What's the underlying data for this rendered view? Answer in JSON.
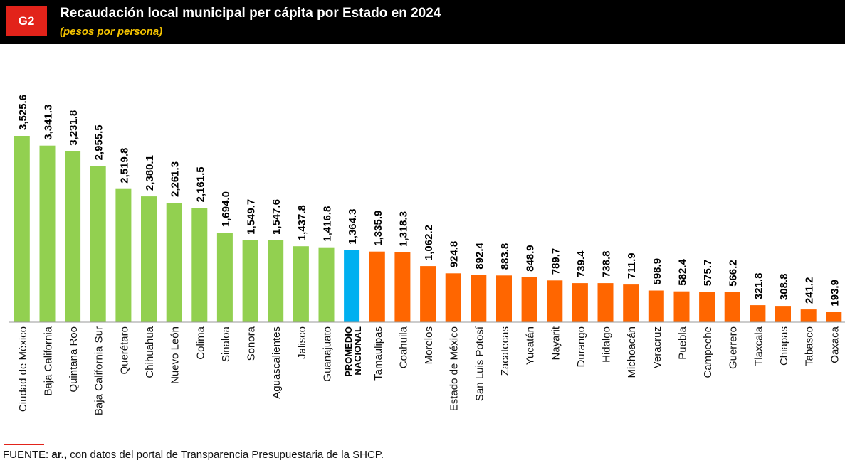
{
  "header": {
    "badge": "G2",
    "title": "Recaudación local municipal per cápita por Estado en 2024",
    "subtitle": "(pesos por persona)"
  },
  "source": {
    "lead": "FUENTE: ",
    "brand": "ar.,",
    "rest": " con datos del portal de Transparencia Presupuestaria de la SHCP."
  },
  "colors": {
    "above_average": "#92d050",
    "national_average": "#00b0f0",
    "below_average": "#ff6600"
  },
  "chart_data": {
    "type": "bar",
    "title": "Recaudación local municipal per cápita por Estado en 2024",
    "subtitle": "(pesos por persona)",
    "xlabel": "",
    "ylabel": "",
    "ylim": [
      0,
      3525.6
    ],
    "grid": false,
    "legend": "none",
    "categories": [
      "Ciudad de México",
      "Baja California",
      "Quintana Roo",
      "Baja California Sur",
      "Querétaro",
      "Chihuahua",
      "Nuevo León",
      "Colima",
      "Sinaloa",
      "Sonora",
      "Aguascalientes",
      "Jalisco",
      "Guanajuato",
      "PROMEDIO NACIONAL",
      "Tamaulipas",
      "Coahuila",
      "Morelos",
      "Estado de México",
      "San Luis Potosí",
      "Zacatecas",
      "Yucatán",
      "Nayarit",
      "Durango",
      "Hidalgo",
      "Michoacán",
      "Veracruz",
      "Puebla",
      "Campeche",
      "Guerrero",
      "Tlaxcala",
      "Chiapas",
      "Tabasco",
      "Oaxaca"
    ],
    "values": [
      3525.6,
      3341.3,
      3231.8,
      2955.5,
      2519.8,
      2380.1,
      2261.3,
      2161.5,
      1694.0,
      1549.7,
      1547.6,
      1437.8,
      1416.8,
      1364.3,
      1335.9,
      1318.3,
      1062.2,
      924.8,
      892.4,
      883.8,
      848.9,
      789.7,
      739.4,
      738.8,
      711.9,
      598.9,
      582.4,
      575.7,
      566.2,
      321.8,
      308.8,
      241.2,
      193.9
    ],
    "value_labels": [
      "3,525.6",
      "3,341.3",
      "3,231.8",
      "2,955.5",
      "2,519.8",
      "2,380.1",
      "2,261.3",
      "2,161.5",
      "1,694.0",
      "1,549.7",
      "1,547.6",
      "1,437.8",
      "1,416.8",
      "1,364.3",
      "1,335.9",
      "1,318.3",
      "1,062.2",
      "924.8",
      "892.4",
      "883.8",
      "848.9",
      "789.7",
      "739.4",
      "738.8",
      "711.9",
      "598.9",
      "582.4",
      "575.7",
      "566.2",
      "321.8",
      "308.8",
      "241.2",
      "193.9"
    ],
    "average_index": 13
  }
}
